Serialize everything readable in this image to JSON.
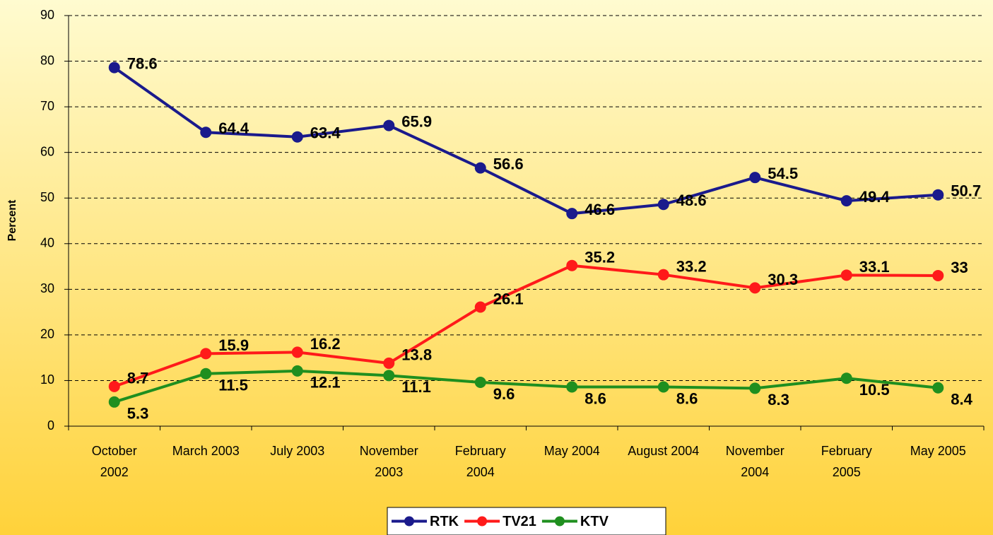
{
  "chart_data": {
    "type": "line",
    "y_label": "Percent",
    "categories": [
      "October 2002",
      "March 2003",
      "July 2003",
      "November 2003",
      "February 2004",
      "May 2004",
      "August 2004",
      "November 2004",
      "February 2005",
      "May 2005"
    ],
    "series": [
      {
        "name": "RTK",
        "color": "#1a1a8c",
        "values": [
          78.6,
          64.4,
          63.4,
          65.9,
          56.6,
          46.6,
          48.6,
          54.5,
          49.4,
          50.7
        ]
      },
      {
        "name": "TV21",
        "color": "#ff1a1a",
        "values": [
          8.7,
          15.9,
          16.2,
          13.8,
          26.1,
          35.2,
          33.2,
          30.3,
          33.1,
          33
        ]
      },
      {
        "name": "KTV",
        "color": "#1f8f1f",
        "values": [
          5.3,
          11.5,
          12.1,
          11.1,
          9.6,
          8.6,
          8.6,
          8.3,
          10.5,
          8.4
        ]
      }
    ],
    "ylim": [
      0,
      90
    ],
    "yticks": [
      0,
      10,
      20,
      30,
      40,
      50,
      60,
      70,
      80,
      90
    ],
    "grid": true,
    "legend": "bottom"
  }
}
